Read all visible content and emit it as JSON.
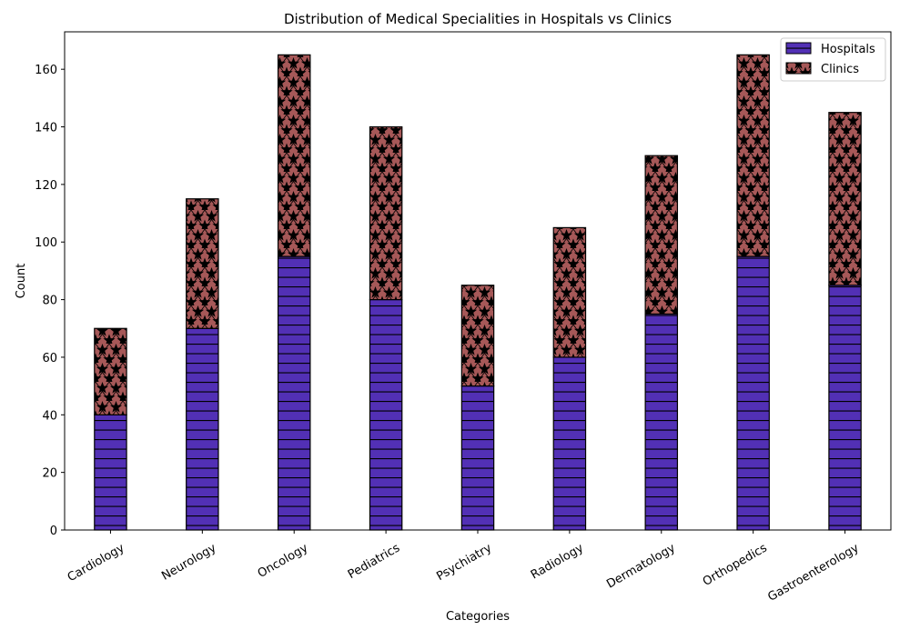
{
  "chart_data": {
    "type": "bar",
    "stacked": true,
    "title": "Distribution of Medical Specialities in Hospitals vs Clinics",
    "xlabel": "Categories",
    "ylabel": "Count",
    "categories": [
      "Cardiology",
      "Neurology",
      "Oncology",
      "Pediatrics",
      "Psychiatry",
      "Radiology",
      "Dermatology",
      "Orthopedics",
      "Gastroenterology"
    ],
    "series": [
      {
        "name": "Hospitals",
        "values": [
          40,
          70,
          95,
          80,
          50,
          60,
          75,
          95,
          85
        ],
        "color": "#5230b5",
        "hatch": "horizontal-lines"
      },
      {
        "name": "Clinics",
        "values": [
          30,
          45,
          70,
          60,
          35,
          45,
          55,
          70,
          60
        ],
        "color": "#a65858",
        "hatch": "stars"
      }
    ],
    "ylim": [
      0,
      173
    ],
    "yticks": [
      0,
      20,
      40,
      60,
      80,
      100,
      120,
      140,
      160
    ],
    "grid": false,
    "legend": "top-right"
  }
}
